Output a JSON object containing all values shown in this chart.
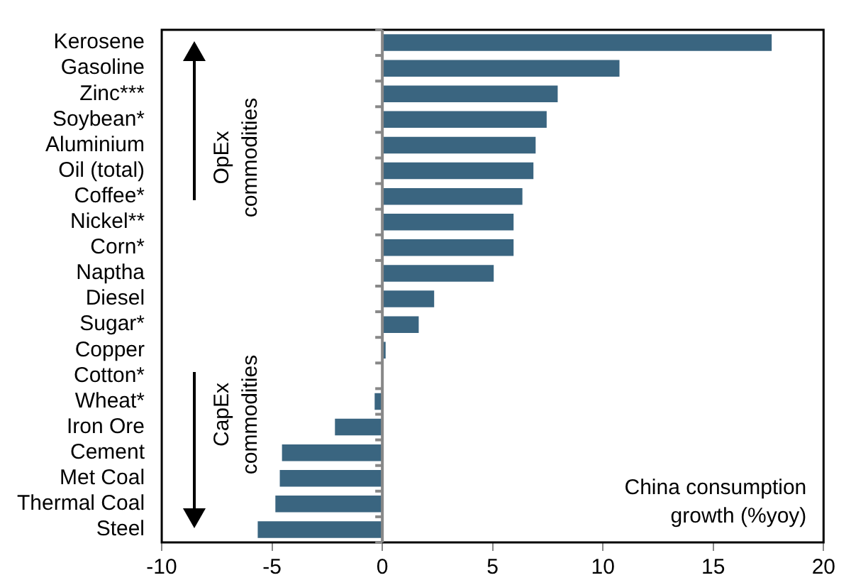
{
  "chart_data": {
    "type": "bar",
    "orientation": "horizontal",
    "categories": [
      "Kerosene",
      "Gasoline",
      "Zinc***",
      "Soybean*",
      "Aluminium",
      "Oil (total)",
      "Coffee*",
      "Nickel**",
      "Corn*",
      "Naptha",
      "Diesel",
      "Sugar*",
      "Copper",
      "Cotton*",
      "Wheat*",
      "Iron Ore",
      "Cement",
      "Met Coal",
      "Thermal Coal",
      "Steel"
    ],
    "values": [
      17.7,
      10.8,
      8.0,
      7.5,
      7.0,
      6.9,
      6.4,
      6.0,
      6.0,
      5.1,
      2.4,
      1.7,
      0.2,
      0,
      -0.4,
      -2.2,
      -4.6,
      -4.7,
      -4.9,
      -5.7
    ],
    "color": "#3a6580",
    "xlim": [
      -10,
      20
    ],
    "xticks": [
      -10,
      -5,
      0,
      5,
      10,
      15,
      20
    ],
    "grid": false,
    "legend": false,
    "ref_lines": [
      {
        "axis": "x",
        "value": 0,
        "color": "#888888"
      }
    ],
    "annotations": [
      "OpEx commodities",
      "CapEx commodities",
      "China consumption growth (%yoy)"
    ]
  }
}
